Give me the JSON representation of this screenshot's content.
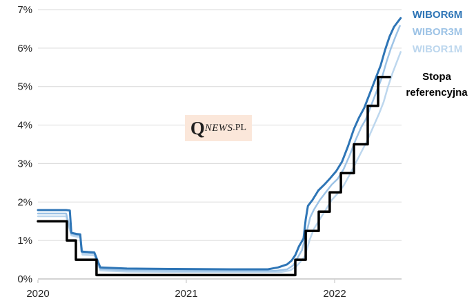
{
  "watermark": {
    "q": "Q",
    "news": "NEWS",
    "pl": ".PL"
  },
  "legend": {
    "items": [
      {
        "label": "WIBOR6M",
        "color": "#2E75B6"
      },
      {
        "label": "WIBOR3M",
        "color": "#9DC3E6"
      },
      {
        "label": "WIBOR1M",
        "color": "#BDD7EE"
      }
    ],
    "stopa": {
      "line1": "Stopa",
      "line2": "referencyjna",
      "color": "#000000"
    }
  },
  "colors": {
    "wibor6m": "#2E75B6",
    "wibor3m": "#9DC3E6",
    "wibor1m": "#BDD7EE",
    "stopa_referencyjna": "#000000",
    "gridline": "#D9D9D9",
    "axis": "#D3D3D3",
    "tick": "#BFBFBF",
    "tick_label": "#262626",
    "watermark_bg": "#FBE7DA"
  },
  "chart_data": {
    "type": "line",
    "title": "",
    "xlabel": "",
    "ylabel": "",
    "xlim": [
      2020,
      2022.451
    ],
    "ylim": [
      0,
      7
    ],
    "grid": "horizontal",
    "legend_position": "right-inside",
    "x_ticks": [
      {
        "label": "2020",
        "x": 2020
      },
      {
        "label": "2021",
        "x": 2021
      },
      {
        "label": "2022",
        "x": 2022
      }
    ],
    "y_ticks": [
      {
        "label": "0%",
        "v": 0
      },
      {
        "label": "1%",
        "v": 1
      },
      {
        "label": "2%",
        "v": 2
      },
      {
        "label": "3%",
        "v": 3
      },
      {
        "label": "4%",
        "v": 4
      },
      {
        "label": "5%",
        "v": 5
      },
      {
        "label": "6%",
        "v": 6
      },
      {
        "label": "7%",
        "v": 7
      }
    ],
    "series": [
      {
        "name": "WIBOR1M",
        "color": "#BDD7EE",
        "width": 2.5,
        "points": [
          [
            2020.0,
            1.63
          ],
          [
            2020.19,
            1.63
          ],
          [
            2020.225,
            1.13
          ],
          [
            2020.26,
            1.1
          ],
          [
            2020.285,
            1.09
          ],
          [
            2020.3,
            0.63
          ],
          [
            2020.38,
            0.61
          ],
          [
            2020.42,
            0.22
          ],
          [
            2020.6,
            0.19
          ],
          [
            2021.0,
            0.18
          ],
          [
            2021.64,
            0.18
          ],
          [
            2021.7,
            0.22
          ],
          [
            2021.74,
            0.32
          ],
          [
            2021.77,
            0.45
          ],
          [
            2021.8,
            0.6
          ],
          [
            2021.83,
            1.0
          ],
          [
            2021.86,
            1.3
          ],
          [
            2021.9,
            1.55
          ],
          [
            2021.94,
            1.8
          ],
          [
            2021.98,
            2.05
          ],
          [
            2022.02,
            2.22
          ],
          [
            2022.06,
            2.42
          ],
          [
            2022.1,
            2.7
          ],
          [
            2022.14,
            3.0
          ],
          [
            2022.18,
            3.3
          ],
          [
            2022.22,
            3.6
          ],
          [
            2022.26,
            3.95
          ],
          [
            2022.3,
            4.3
          ],
          [
            2022.33,
            4.6
          ],
          [
            2022.36,
            5.0
          ],
          [
            2022.39,
            5.35
          ],
          [
            2022.42,
            5.65
          ],
          [
            2022.445,
            5.9
          ]
        ]
      },
      {
        "name": "WIBOR3M",
        "color": "#9DC3E6",
        "width": 2.5,
        "points": [
          [
            2020.0,
            1.7
          ],
          [
            2020.19,
            1.7
          ],
          [
            2020.225,
            1.17
          ],
          [
            2020.26,
            1.14
          ],
          [
            2020.285,
            1.13
          ],
          [
            2020.3,
            0.68
          ],
          [
            2020.38,
            0.66
          ],
          [
            2020.42,
            0.26
          ],
          [
            2020.6,
            0.23
          ],
          [
            2021.0,
            0.21
          ],
          [
            2021.6,
            0.21
          ],
          [
            2021.68,
            0.25
          ],
          [
            2021.72,
            0.35
          ],
          [
            2021.75,
            0.55
          ],
          [
            2021.78,
            0.75
          ],
          [
            2021.81,
            1.2
          ],
          [
            2021.835,
            1.6
          ],
          [
            2021.86,
            1.8
          ],
          [
            2021.9,
            2.05
          ],
          [
            2021.94,
            2.25
          ],
          [
            2021.98,
            2.45
          ],
          [
            2022.02,
            2.6
          ],
          [
            2022.06,
            2.85
          ],
          [
            2022.1,
            3.2
          ],
          [
            2022.14,
            3.6
          ],
          [
            2022.18,
            3.95
          ],
          [
            2022.21,
            4.15
          ],
          [
            2022.25,
            4.55
          ],
          [
            2022.29,
            4.95
          ],
          [
            2022.32,
            5.25
          ],
          [
            2022.35,
            5.65
          ],
          [
            2022.38,
            6.0
          ],
          [
            2022.41,
            6.3
          ],
          [
            2022.44,
            6.58
          ]
        ]
      },
      {
        "name": "WIBOR6M",
        "color": "#2E75B6",
        "width": 3,
        "points": [
          [
            2020.0,
            1.79
          ],
          [
            2020.19,
            1.79
          ],
          [
            2020.215,
            1.78
          ],
          [
            2020.225,
            1.2
          ],
          [
            2020.26,
            1.17
          ],
          [
            2020.285,
            1.16
          ],
          [
            2020.295,
            0.71
          ],
          [
            2020.38,
            0.69
          ],
          [
            2020.42,
            0.3
          ],
          [
            2020.6,
            0.27
          ],
          [
            2020.9,
            0.26
          ],
          [
            2021.3,
            0.25
          ],
          [
            2021.55,
            0.25
          ],
          [
            2021.62,
            0.3
          ],
          [
            2021.68,
            0.38
          ],
          [
            2021.71,
            0.48
          ],
          [
            2021.735,
            0.62
          ],
          [
            2021.76,
            0.85
          ],
          [
            2021.79,
            1.05
          ],
          [
            2021.805,
            1.55
          ],
          [
            2021.82,
            1.9
          ],
          [
            2021.85,
            2.05
          ],
          [
            2021.89,
            2.3
          ],
          [
            2021.93,
            2.45
          ],
          [
            2021.97,
            2.62
          ],
          [
            2022.01,
            2.8
          ],
          [
            2022.05,
            3.05
          ],
          [
            2022.09,
            3.45
          ],
          [
            2022.13,
            3.9
          ],
          [
            2022.165,
            4.2
          ],
          [
            2022.2,
            4.45
          ],
          [
            2022.24,
            4.85
          ],
          [
            2022.28,
            5.25
          ],
          [
            2022.31,
            5.55
          ],
          [
            2022.34,
            5.95
          ],
          [
            2022.37,
            6.3
          ],
          [
            2022.4,
            6.55
          ],
          [
            2022.425,
            6.68
          ],
          [
            2022.445,
            6.78
          ]
        ]
      },
      {
        "name": "Stopa referencyjna",
        "color": "#000000",
        "width": 3.5,
        "step": true,
        "points": [
          [
            2020.0,
            1.5
          ],
          [
            2020.195,
            1.5
          ],
          [
            2020.195,
            1.0
          ],
          [
            2020.256,
            1.0
          ],
          [
            2020.256,
            0.5
          ],
          [
            2020.395,
            0.5
          ],
          [
            2020.395,
            0.1
          ],
          [
            2021.735,
            0.1
          ],
          [
            2021.735,
            0.5
          ],
          [
            2021.805,
            0.5
          ],
          [
            2021.805,
            1.25
          ],
          [
            2021.893,
            1.25
          ],
          [
            2021.893,
            1.75
          ],
          [
            2021.967,
            1.75
          ],
          [
            2021.967,
            2.25
          ],
          [
            2022.042,
            2.25
          ],
          [
            2022.042,
            2.75
          ],
          [
            2022.13,
            2.75
          ],
          [
            2022.13,
            3.5
          ],
          [
            2022.223,
            3.5
          ],
          [
            2022.223,
            4.5
          ],
          [
            2022.293,
            4.5
          ],
          [
            2022.293,
            5.25
          ],
          [
            2022.372,
            5.25
          ]
        ]
      }
    ]
  }
}
